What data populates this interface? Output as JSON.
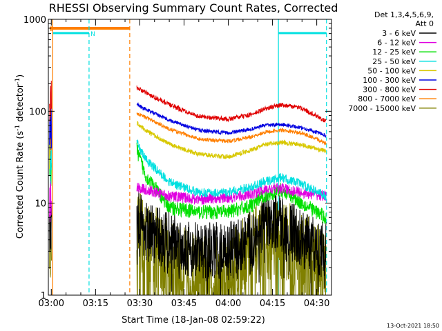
{
  "chart_data": {
    "type": "line",
    "title": "RHESSI Observing Summary Count Rates, Corrected",
    "xlabel": "Start Time (18-Jan-08 02:59:22)",
    "ylabel": "Corrected Count Rate (s",
    "ylabel_sup1": "-1",
    "ylabel_mid": " detector",
    "ylabel_sup2": "-1",
    "ylabel_end": ")",
    "yscale": "log",
    "ylim": [
      1,
      1000
    ],
    "y_ticks": [
      {
        "value": 1,
        "label": "1"
      },
      {
        "value": 10,
        "label": "10"
      },
      {
        "value": 100,
        "label": "100"
      },
      {
        "value": 1000,
        "label": "1000"
      }
    ],
    "xlim_minutes": [
      -1,
      95
    ],
    "x_ticks": [
      {
        "minute": 0,
        "label": "03:00"
      },
      {
        "minute": 15,
        "label": "03:15"
      },
      {
        "minute": 30,
        "label": "03:30"
      },
      {
        "minute": 45,
        "label": "03:45"
      },
      {
        "minute": 60,
        "label": "04:00"
      },
      {
        "minute": 75,
        "label": "04:15"
      },
      {
        "minute": 90,
        "label": "04:30"
      }
    ],
    "legend": {
      "header1": "Det 1,3,4,5,6,9,",
      "header2": "Att 0",
      "placement": "right"
    },
    "series": [
      {
        "name": "3 - 6 keV",
        "label": "3 - 6 keV",
        "color": "#000000",
        "values_at": {
          "29": 8,
          "32": 5,
          "40": 4,
          "50": 3,
          "60": 3,
          "68": 4,
          "72": 6,
          "78": 6,
          "85": 4,
          "93": 3
        }
      },
      {
        "name": "6 - 12 keV",
        "label": "6 - 12 keV",
        "color": "#e000e0",
        "values_at": {
          "29": 15,
          "32": 14,
          "40": 12,
          "50": 11,
          "60": 11.5,
          "68": 12.5,
          "72": 14,
          "78": 14.5,
          "85": 13,
          "93": 12
        }
      },
      {
        "name": "12 - 25 keV",
        "label": "12 - 25 keV",
        "color": "#00e000",
        "values_at": {
          "29": 38,
          "32": 20,
          "40": 9,
          "50": 8,
          "60": 8,
          "68": 9.5,
          "72": 12,
          "78": 14,
          "85": 10,
          "93": 7
        }
      },
      {
        "name": "25 - 50 keV",
        "label": "25 - 50 keV",
        "color": "#00e0e0",
        "values_at": {
          "29": 45,
          "32": 30,
          "40": 17,
          "50": 13,
          "60": 13,
          "68": 15,
          "72": 17,
          "78": 19,
          "85": 16,
          "93": 12
        }
      },
      {
        "name": "50 - 100 keV",
        "label": "50 - 100 keV",
        "color": "#d8c800",
        "values_at": {
          "29": 75,
          "32": 62,
          "40": 44,
          "50": 34,
          "60": 32,
          "68": 38,
          "72": 43,
          "78": 46,
          "85": 43,
          "93": 37
        }
      },
      {
        "name": "100 - 300 keV",
        "label": "100 - 300 keV",
        "color": "#0000e0",
        "values_at": {
          "29": 120,
          "32": 105,
          "40": 80,
          "50": 62,
          "60": 58,
          "68": 64,
          "72": 70,
          "78": 72,
          "85": 66,
          "93": 55
        }
      },
      {
        "name": "300 - 800 keV",
        "label": "300 - 800 keV",
        "color": "#e00000",
        "values_at": {
          "29": 180,
          "32": 160,
          "40": 118,
          "50": 88,
          "60": 82,
          "68": 92,
          "72": 105,
          "78": 118,
          "85": 108,
          "93": 78
        }
      },
      {
        "name": "800 - 7000 keV",
        "label": "800 - 7000 keV",
        "color": "#ff7f00",
        "values_at": {
          "29": 95,
          "32": 86,
          "40": 64,
          "50": 50,
          "60": 47,
          "68": 53,
          "72": 59,
          "78": 62,
          "85": 58,
          "93": 45
        }
      },
      {
        "name": "7000 - 15000 keV",
        "label": "7000 - 15000 keV",
        "color": "#808000",
        "values_at": {
          "29": 5,
          "32": 4,
          "40": 2.5,
          "50": 1.6,
          "60": 1.6,
          "68": 3.3,
          "72": 4,
          "78": 4,
          "85": 3,
          "93": 1.8
        }
      }
    ],
    "annotations": {
      "eclipse_marker": "E",
      "saa_marker": "N",
      "eclipse_color": "#ff7f00",
      "saa_color": "#00e0e0"
    },
    "footer_date": "13-Oct-2021 18:50"
  }
}
